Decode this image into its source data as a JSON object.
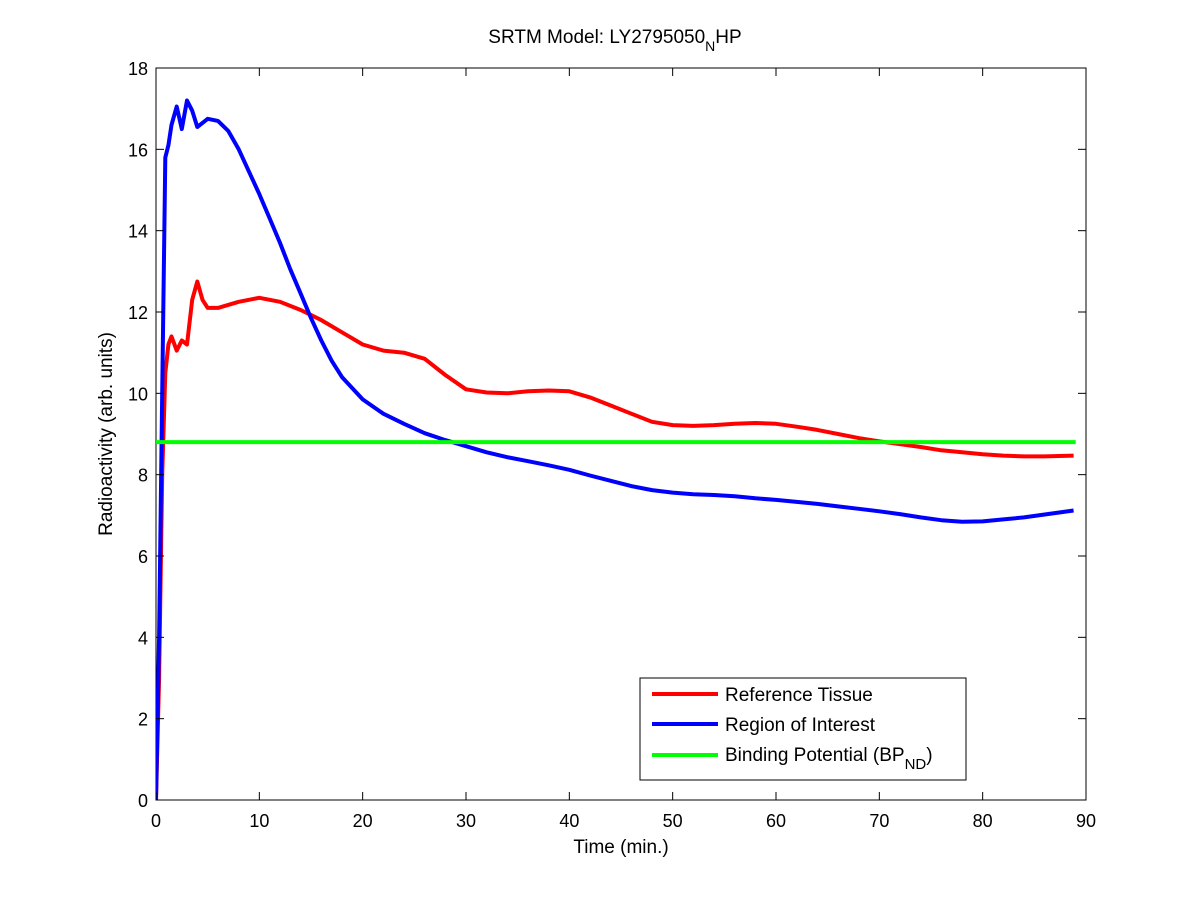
{
  "chart_data": {
    "type": "line",
    "title": "SRTM Model: LY2795050",
    "title_subscript": "N",
    "title_suffix": "HP",
    "xlabel": "Time (min.)",
    "ylabel": "Radioactivity (arb. units)",
    "xlim": [
      0,
      90
    ],
    "ylim": [
      0,
      18
    ],
    "xticks": [
      0,
      10,
      20,
      30,
      40,
      50,
      60,
      70,
      80,
      90
    ],
    "yticks": [
      0,
      2,
      4,
      6,
      8,
      10,
      12,
      14,
      16,
      18
    ],
    "grid": false,
    "legend_position": "lower-right",
    "series": [
      {
        "name": "Reference Tissue",
        "color": "#ff0000",
        "points": [
          [
            0,
            0
          ],
          [
            0.3,
            3
          ],
          [
            0.6,
            8
          ],
          [
            0.9,
            10.5
          ],
          [
            1.2,
            11.2
          ],
          [
            1.5,
            11.4
          ],
          [
            2,
            11.05
          ],
          [
            2.5,
            11.3
          ],
          [
            3,
            11.2
          ],
          [
            3.5,
            12.3
          ],
          [
            4,
            12.75
          ],
          [
            4.5,
            12.3
          ],
          [
            5,
            12.1
          ],
          [
            6,
            12.1
          ],
          [
            8,
            12.25
          ],
          [
            10,
            12.35
          ],
          [
            12,
            12.25
          ],
          [
            14,
            12.05
          ],
          [
            16,
            11.8
          ],
          [
            18,
            11.5
          ],
          [
            20,
            11.2
          ],
          [
            22,
            11.05
          ],
          [
            24,
            11.0
          ],
          [
            26,
            10.85
          ],
          [
            28,
            10.45
          ],
          [
            30,
            10.1
          ],
          [
            32,
            10.02
          ],
          [
            34,
            10.0
          ],
          [
            36,
            10.05
          ],
          [
            38,
            10.07
          ],
          [
            40,
            10.05
          ],
          [
            42,
            9.9
          ],
          [
            44,
            9.7
          ],
          [
            46,
            9.5
          ],
          [
            48,
            9.3
          ],
          [
            50,
            9.22
          ],
          [
            52,
            9.2
          ],
          [
            54,
            9.22
          ],
          [
            56,
            9.25
          ],
          [
            58,
            9.27
          ],
          [
            60,
            9.25
          ],
          [
            62,
            9.18
          ],
          [
            64,
            9.1
          ],
          [
            66,
            9.0
          ],
          [
            68,
            8.9
          ],
          [
            70,
            8.82
          ],
          [
            72,
            8.75
          ],
          [
            74,
            8.68
          ],
          [
            76,
            8.6
          ],
          [
            78,
            8.55
          ],
          [
            80,
            8.5
          ],
          [
            82,
            8.47
          ],
          [
            84,
            8.45
          ],
          [
            86,
            8.45
          ],
          [
            88.8,
            8.47
          ]
        ]
      },
      {
        "name": "Region of Interest",
        "color": "#0000ff",
        "points": [
          [
            0,
            0
          ],
          [
            0.3,
            4
          ],
          [
            0.6,
            10
          ],
          [
            0.9,
            15.8
          ],
          [
            1.2,
            16.1
          ],
          [
            1.5,
            16.6
          ],
          [
            2,
            17.05
          ],
          [
            2.5,
            16.5
          ],
          [
            3,
            17.2
          ],
          [
            3.5,
            16.95
          ],
          [
            4,
            16.55
          ],
          [
            4.5,
            16.65
          ],
          [
            5,
            16.75
          ],
          [
            6,
            16.7
          ],
          [
            7,
            16.45
          ],
          [
            8,
            16.0
          ],
          [
            9,
            15.45
          ],
          [
            10,
            14.9
          ],
          [
            11,
            14.3
          ],
          [
            12,
            13.7
          ],
          [
            13,
            13.05
          ],
          [
            14,
            12.45
          ],
          [
            15,
            11.85
          ],
          [
            16,
            11.3
          ],
          [
            17,
            10.8
          ],
          [
            18,
            10.4
          ],
          [
            20,
            9.85
          ],
          [
            22,
            9.5
          ],
          [
            24,
            9.25
          ],
          [
            26,
            9.02
          ],
          [
            28,
            8.85
          ],
          [
            30,
            8.7
          ],
          [
            32,
            8.55
          ],
          [
            34,
            8.43
          ],
          [
            36,
            8.33
          ],
          [
            38,
            8.23
          ],
          [
            40,
            8.12
          ],
          [
            42,
            7.98
          ],
          [
            44,
            7.85
          ],
          [
            46,
            7.72
          ],
          [
            48,
            7.62
          ],
          [
            50,
            7.56
          ],
          [
            52,
            7.52
          ],
          [
            54,
            7.5
          ],
          [
            56,
            7.47
          ],
          [
            58,
            7.42
          ],
          [
            60,
            7.38
          ],
          [
            62,
            7.33
          ],
          [
            64,
            7.28
          ],
          [
            66,
            7.22
          ],
          [
            68,
            7.16
          ],
          [
            70,
            7.1
          ],
          [
            72,
            7.03
          ],
          [
            74,
            6.95
          ],
          [
            76,
            6.88
          ],
          [
            78,
            6.84
          ],
          [
            80,
            6.85
          ],
          [
            82,
            6.9
          ],
          [
            84,
            6.95
          ],
          [
            86,
            7.02
          ],
          [
            88.8,
            7.12
          ]
        ]
      },
      {
        "name": "Binding Potential (BP",
        "name_subscript": "ND",
        "name_suffix": ")",
        "color": "#00ff00",
        "points": [
          [
            0,
            8.8
          ],
          [
            89,
            8.8
          ]
        ]
      }
    ]
  }
}
